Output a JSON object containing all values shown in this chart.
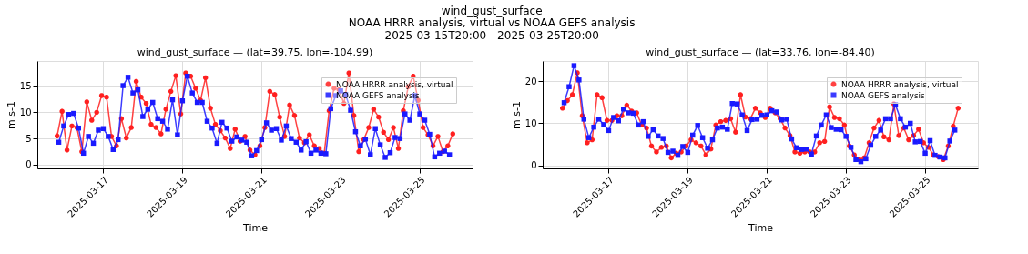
{
  "chart_data": [
    {
      "type": "line",
      "title": "wind_gust_surface — (lat=39.75, lon=-104.99)",
      "annotations": [
        "wind_gust_surface",
        "NOAA HRRR analysis, virtual vs NOAA GEFS analysis",
        "2025-03-15T20:00 - 2025-03-25T20:00"
      ],
      "xlabel": "Time",
      "ylabel": "m s-1",
      "xlim": [
        "2025-03-15T08:00",
        "2025-03-26T08:00"
      ],
      "xticks": [
        {
          "value": "2025-03-17",
          "label": "2025-03-17"
        },
        {
          "value": "2025-03-19",
          "label": "2025-03-19"
        },
        {
          "value": "2025-03-21",
          "label": "2025-03-21"
        },
        {
          "value": "2025-03-23",
          "label": "2025-03-23"
        },
        {
          "value": "2025-03-25",
          "label": "2025-03-25"
        }
      ],
      "ylim": [
        -0.7,
        19.8
      ],
      "yticks": [
        0,
        5,
        10,
        15
      ],
      "grid": true,
      "legend": "top right",
      "line_style": "solid",
      "series": [
        {
          "name": "NOAA HRRR analysis, virtual",
          "color": "#ff2020",
          "marker": "circle",
          "x": [
            "2025-03-15T20:00",
            "2025-03-15T23:00",
            "2025-03-16T02:00",
            "2025-03-16T05:00",
            "2025-03-16T08:00",
            "2025-03-16T11:00",
            "2025-03-16T14:00",
            "2025-03-16T17:00",
            "2025-03-16T20:00",
            "2025-03-16T23:00",
            "2025-03-17T02:00",
            "2025-03-17T05:00",
            "2025-03-17T08:00",
            "2025-03-17T11:00",
            "2025-03-17T14:00",
            "2025-03-17T17:00",
            "2025-03-17T20:00",
            "2025-03-17T23:00",
            "2025-03-18T02:00",
            "2025-03-18T05:00",
            "2025-03-18T08:00",
            "2025-03-18T11:00",
            "2025-03-18T14:00",
            "2025-03-18T17:00",
            "2025-03-18T20:00",
            "2025-03-18T23:00",
            "2025-03-19T02:00",
            "2025-03-19T05:00",
            "2025-03-19T08:00",
            "2025-03-19T11:00",
            "2025-03-19T14:00",
            "2025-03-19T17:00",
            "2025-03-19T20:00",
            "2025-03-19T23:00",
            "2025-03-20T02:00",
            "2025-03-20T05:00",
            "2025-03-20T08:00",
            "2025-03-20T11:00",
            "2025-03-20T14:00",
            "2025-03-20T17:00",
            "2025-03-20T20:00",
            "2025-03-20T23:00",
            "2025-03-21T02:00",
            "2025-03-21T05:00",
            "2025-03-21T08:00",
            "2025-03-21T11:00",
            "2025-03-21T14:00",
            "2025-03-21T17:00",
            "2025-03-21T20:00",
            "2025-03-21T23:00",
            "2025-03-22T02:00",
            "2025-03-22T05:00",
            "2025-03-22T08:00",
            "2025-03-22T11:00",
            "2025-03-22T14:00",
            "2025-03-22T17:00",
            "2025-03-22T20:00",
            "2025-03-22T23:00",
            "2025-03-23T02:00",
            "2025-03-23T05:00",
            "2025-03-23T08:00",
            "2025-03-23T11:00",
            "2025-03-23T14:00",
            "2025-03-23T17:00",
            "2025-03-23T20:00",
            "2025-03-23T23:00",
            "2025-03-24T02:00",
            "2025-03-24T05:00",
            "2025-03-24T08:00",
            "2025-03-24T11:00",
            "2025-03-24T14:00",
            "2025-03-24T17:00",
            "2025-03-24T20:00",
            "2025-03-24T23:00",
            "2025-03-25T02:00",
            "2025-03-25T05:00",
            "2025-03-25T08:00",
            "2025-03-25T11:00",
            "2025-03-25T14:00",
            "2025-03-25T17:00",
            "2025-03-25T20:00"
          ],
          "values": [
            5.5,
            10.2,
            2.8,
            7.4,
            7.1,
            2.5,
            12.0,
            8.5,
            10.0,
            13.2,
            12.9,
            5.4,
            3.6,
            8.8,
            5.1,
            7.1,
            15.9,
            12.9,
            11.7,
            7.7,
            7.1,
            5.9,
            10.6,
            14.0,
            17.0,
            9.7,
            17.5,
            16.9,
            14.6,
            12.3,
            16.6,
            10.8,
            7.7,
            6.5,
            5.1,
            3.1,
            6.8,
            4.5,
            5.4,
            2.8,
            1.9,
            3.6,
            7.1,
            14.0,
            13.4,
            9.1,
            5.4,
            11.4,
            9.4,
            5.1,
            4.2,
            5.7,
            3.6,
            3.1,
            2.2,
            10.3,
            14.6,
            14.3,
            11.7,
            17.5,
            9.4,
            2.5,
            4.8,
            7.1,
            10.6,
            9.1,
            6.2,
            4.8,
            7.1,
            3.1,
            10.3,
            14.9,
            16.9,
            12.3,
            7.1,
            5.7,
            3.6,
            5.4,
            2.5,
            3.6,
            5.9
          ]
        },
        {
          "name": "NOAA GEFS analysis",
          "color": "#1a1aff",
          "marker": "square",
          "x": [
            "2025-03-15T21:00",
            "2025-03-16T00:00",
            "2025-03-16T03:00",
            "2025-03-16T06:00",
            "2025-03-16T09:00",
            "2025-03-16T12:00",
            "2025-03-16T15:00",
            "2025-03-16T18:00",
            "2025-03-16T21:00",
            "2025-03-17T00:00",
            "2025-03-17T03:00",
            "2025-03-17T06:00",
            "2025-03-17T09:00",
            "2025-03-17T12:00",
            "2025-03-17T15:00",
            "2025-03-17T18:00",
            "2025-03-17T21:00",
            "2025-03-18T00:00",
            "2025-03-18T03:00",
            "2025-03-18T06:00",
            "2025-03-18T09:00",
            "2025-03-18T12:00",
            "2025-03-18T15:00",
            "2025-03-18T18:00",
            "2025-03-18T21:00",
            "2025-03-19T00:00",
            "2025-03-19T03:00",
            "2025-03-19T06:00",
            "2025-03-19T09:00",
            "2025-03-19T12:00",
            "2025-03-19T15:00",
            "2025-03-19T18:00",
            "2025-03-19T21:00",
            "2025-03-20T00:00",
            "2025-03-20T03:00",
            "2025-03-20T06:00",
            "2025-03-20T09:00",
            "2025-03-20T12:00",
            "2025-03-20T15:00",
            "2025-03-20T18:00",
            "2025-03-20T21:00",
            "2025-03-21T00:00",
            "2025-03-21T03:00",
            "2025-03-21T06:00",
            "2025-03-21T09:00",
            "2025-03-21T12:00",
            "2025-03-21T15:00",
            "2025-03-21T18:00",
            "2025-03-21T21:00",
            "2025-03-22T00:00",
            "2025-03-22T03:00",
            "2025-03-22T06:00",
            "2025-03-22T09:00",
            "2025-03-22T12:00",
            "2025-03-22T15:00",
            "2025-03-22T18:00",
            "2025-03-22T21:00",
            "2025-03-23T00:00",
            "2025-03-23T03:00",
            "2025-03-23T06:00",
            "2025-03-23T09:00",
            "2025-03-23T12:00",
            "2025-03-23T15:00",
            "2025-03-23T18:00",
            "2025-03-23T21:00",
            "2025-03-24T00:00",
            "2025-03-24T03:00",
            "2025-03-24T06:00",
            "2025-03-24T09:00",
            "2025-03-24T12:00",
            "2025-03-24T15:00",
            "2025-03-24T18:00",
            "2025-03-24T21:00",
            "2025-03-25T00:00",
            "2025-03-25T03:00",
            "2025-03-25T06:00",
            "2025-03-25T09:00",
            "2025-03-25T12:00",
            "2025-03-25T15:00",
            "2025-03-25T18:00"
          ],
          "values": [
            4.3,
            7.4,
            9.6,
            9.8,
            7.0,
            2.2,
            5.4,
            4.1,
            6.6,
            6.9,
            5.4,
            2.9,
            4.8,
            15.1,
            16.7,
            13.7,
            14.3,
            9.2,
            10.6,
            11.9,
            8.8,
            8.3,
            6.8,
            12.4,
            5.7,
            12.2,
            16.9,
            13.7,
            11.9,
            11.9,
            8.3,
            7.0,
            4.1,
            8.1,
            7.0,
            4.5,
            5.3,
            4.7,
            4.3,
            1.7,
            2.7,
            4.8,
            8.0,
            6.6,
            6.9,
            4.7,
            7.4,
            5.0,
            4.3,
            2.8,
            4.4,
            2.2,
            2.8,
            2.2,
            2.1,
            10.7,
            13.2,
            14.1,
            13.4,
            10.4,
            6.3,
            3.6,
            4.9,
            1.9,
            6.9,
            3.8,
            1.4,
            2.3,
            5.2,
            5.0,
            9.7,
            8.5,
            13.2,
            9.7,
            8.5,
            5.8,
            1.5,
            2.2,
            2.6,
            1.9
          ]
        }
      ]
    },
    {
      "type": "line",
      "title": "wind_gust_surface — (lat=33.76, lon=-84.40)",
      "xlabel": "Time",
      "ylabel": "m s-1",
      "xlim": [
        "2025-03-15T08:00",
        "2025-03-26T08:00"
      ],
      "xticks": [
        {
          "value": "2025-03-17",
          "label": "2025-03-17"
        },
        {
          "value": "2025-03-19",
          "label": "2025-03-19"
        },
        {
          "value": "2025-03-21",
          "label": "2025-03-21"
        },
        {
          "value": "2025-03-23",
          "label": "2025-03-23"
        },
        {
          "value": "2025-03-25",
          "label": "2025-03-25"
        }
      ],
      "ylim": [
        -0.7,
        24.8
      ],
      "yticks": [
        0,
        10,
        20
      ],
      "grid": true,
      "legend": "top right",
      "line_style": "solid",
      "series": [
        {
          "name": "NOAA HRRR analysis, virtual",
          "color": "#ff2020",
          "marker": "circle",
          "x": [
            "2025-03-15T20:00",
            "2025-03-15T23:00",
            "2025-03-16T02:00",
            "2025-03-16T05:00",
            "2025-03-16T08:00",
            "2025-03-16T11:00",
            "2025-03-16T14:00",
            "2025-03-16T17:00",
            "2025-03-16T20:00",
            "2025-03-16T23:00",
            "2025-03-17T02:00",
            "2025-03-17T05:00",
            "2025-03-17T08:00",
            "2025-03-17T11:00",
            "2025-03-17T14:00",
            "2025-03-17T17:00",
            "2025-03-17T20:00",
            "2025-03-17T23:00",
            "2025-03-18T02:00",
            "2025-03-18T05:00",
            "2025-03-18T08:00",
            "2025-03-18T11:00",
            "2025-03-18T14:00",
            "2025-03-18T17:00",
            "2025-03-18T20:00",
            "2025-03-18T23:00",
            "2025-03-19T02:00",
            "2025-03-19T05:00",
            "2025-03-19T08:00",
            "2025-03-19T11:00",
            "2025-03-19T14:00",
            "2025-03-19T17:00",
            "2025-03-19T20:00",
            "2025-03-19T23:00",
            "2025-03-20T02:00",
            "2025-03-20T05:00",
            "2025-03-20T08:00",
            "2025-03-20T11:00",
            "2025-03-20T14:00",
            "2025-03-20T17:00",
            "2025-03-20T20:00",
            "2025-03-20T23:00",
            "2025-03-21T02:00",
            "2025-03-21T05:00",
            "2025-03-21T08:00",
            "2025-03-21T11:00",
            "2025-03-21T14:00",
            "2025-03-21T17:00",
            "2025-03-21T20:00",
            "2025-03-21T23:00",
            "2025-03-22T02:00",
            "2025-03-22T05:00",
            "2025-03-22T08:00",
            "2025-03-22T11:00",
            "2025-03-22T14:00",
            "2025-03-22T17:00",
            "2025-03-22T20:00",
            "2025-03-22T23:00",
            "2025-03-23T02:00",
            "2025-03-23T05:00",
            "2025-03-23T08:00",
            "2025-03-23T11:00",
            "2025-03-23T14:00",
            "2025-03-23T17:00",
            "2025-03-23T20:00",
            "2025-03-23T23:00",
            "2025-03-24T02:00",
            "2025-03-24T05:00",
            "2025-03-24T08:00",
            "2025-03-24T11:00",
            "2025-03-24T14:00",
            "2025-03-24T17:00",
            "2025-03-24T20:00",
            "2025-03-24T23:00",
            "2025-03-25T02:00",
            "2025-03-25T05:00",
            "2025-03-25T08:00",
            "2025-03-25T11:00",
            "2025-03-25T14:00",
            "2025-03-25T17:00",
            "2025-03-25T20:00"
          ],
          "values": [
            13.6,
            15.4,
            16.8,
            22.0,
            11.8,
            5.4,
            6.1,
            16.8,
            16.1,
            10.7,
            10.7,
            11.8,
            11.8,
            14.3,
            12.9,
            12.5,
            9.6,
            8.9,
            4.6,
            3.2,
            4.3,
            4.6,
            1.8,
            2.9,
            3.2,
            4.6,
            6.1,
            5.4,
            4.6,
            2.5,
            3.9,
            9.6,
            10.4,
            10.7,
            11.1,
            7.9,
            16.8,
            11.5,
            11.1,
            13.6,
            12.5,
            11.4,
            13.6,
            12.5,
            11.1,
            8.9,
            7.1,
            3.2,
            2.9,
            3.2,
            3.2,
            3.2,
            5.4,
            5.7,
            13.9,
            11.4,
            11.1,
            9.6,
            4.6,
            2.5,
            1.4,
            1.8,
            5.4,
            8.9,
            10.7,
            6.8,
            6.1,
            14.6,
            7.1,
            8.9,
            6.1,
            7.1,
            8.6,
            5.4,
            4.3,
            2.5,
            2.1,
            1.4,
            4.6,
            9.3,
            13.6
          ]
        },
        {
          "name": "NOAA GEFS analysis",
          "color": "#1a1aff",
          "marker": "square",
          "x": [
            "2025-03-15T21:00",
            "2025-03-16T00:00",
            "2025-03-16T03:00",
            "2025-03-16T06:00",
            "2025-03-16T09:00",
            "2025-03-16T12:00",
            "2025-03-16T15:00",
            "2025-03-16T18:00",
            "2025-03-16T21:00",
            "2025-03-17T00:00",
            "2025-03-17T03:00",
            "2025-03-17T06:00",
            "2025-03-17T09:00",
            "2025-03-17T12:00",
            "2025-03-17T15:00",
            "2025-03-17T18:00",
            "2025-03-17T21:00",
            "2025-03-18T00:00",
            "2025-03-18T03:00",
            "2025-03-18T06:00",
            "2025-03-18T09:00",
            "2025-03-18T12:00",
            "2025-03-18T15:00",
            "2025-03-18T18:00",
            "2025-03-18T21:00",
            "2025-03-19T00:00",
            "2025-03-19T03:00",
            "2025-03-19T06:00",
            "2025-03-19T09:00",
            "2025-03-19T12:00",
            "2025-03-19T15:00",
            "2025-03-19T18:00",
            "2025-03-19T21:00",
            "2025-03-20T00:00",
            "2025-03-20T03:00",
            "2025-03-20T06:00",
            "2025-03-20T09:00",
            "2025-03-20T12:00",
            "2025-03-20T15:00",
            "2025-03-20T18:00",
            "2025-03-20T21:00",
            "2025-03-21T00:00",
            "2025-03-21T03:00",
            "2025-03-21T06:00",
            "2025-03-21T09:00",
            "2025-03-21T12:00",
            "2025-03-21T15:00",
            "2025-03-21T18:00",
            "2025-03-21T21:00",
            "2025-03-22T00:00",
            "2025-03-22T03:00",
            "2025-03-22T06:00",
            "2025-03-22T09:00",
            "2025-03-22T12:00",
            "2025-03-22T15:00",
            "2025-03-22T18:00",
            "2025-03-22T21:00",
            "2025-03-23T00:00",
            "2025-03-23T03:00",
            "2025-03-23T06:00",
            "2025-03-23T09:00",
            "2025-03-23T12:00",
            "2025-03-23T15:00",
            "2025-03-23T18:00",
            "2025-03-23T21:00",
            "2025-03-24T00:00",
            "2025-03-24T03:00",
            "2025-03-24T06:00",
            "2025-03-24T09:00",
            "2025-03-24T12:00",
            "2025-03-24T15:00",
            "2025-03-24T18:00",
            "2025-03-24T21:00",
            "2025-03-25T00:00",
            "2025-03-25T03:00",
            "2025-03-25T06:00",
            "2025-03-25T09:00",
            "2025-03-25T12:00",
            "2025-03-25T15:00",
            "2025-03-25T18:00"
          ],
          "values": [
            14.9,
            18.7,
            23.7,
            20.3,
            11.0,
            6.6,
            9.1,
            11.0,
            9.7,
            8.3,
            11.4,
            10.6,
            13.4,
            12.5,
            12.4,
            9.6,
            10.4,
            6.9,
            8.5,
            7.0,
            6.4,
            3.1,
            3.4,
            2.4,
            4.5,
            3.1,
            7.2,
            9.5,
            6.6,
            4.1,
            6.1,
            8.9,
            9.1,
            8.6,
            14.7,
            14.6,
            12.0,
            8.3,
            10.9,
            11.0,
            11.9,
            12.0,
            13.0,
            12.7,
            10.8,
            11.0,
            6.3,
            4.2,
            3.8,
            3.9,
            2.7,
            7.0,
            9.6,
            12.0,
            9.0,
            8.6,
            8.5,
            6.9,
            4.3,
            1.4,
            0.9,
            1.6,
            4.8,
            6.9,
            8.4,
            11.1,
            11.1,
            14.4,
            11.1,
            9.1,
            10.0,
            5.6,
            5.7,
            2.9,
            5.9,
            2.4,
            2.0,
            1.8,
            5.8,
            8.4
          ]
        }
      ]
    }
  ]
}
